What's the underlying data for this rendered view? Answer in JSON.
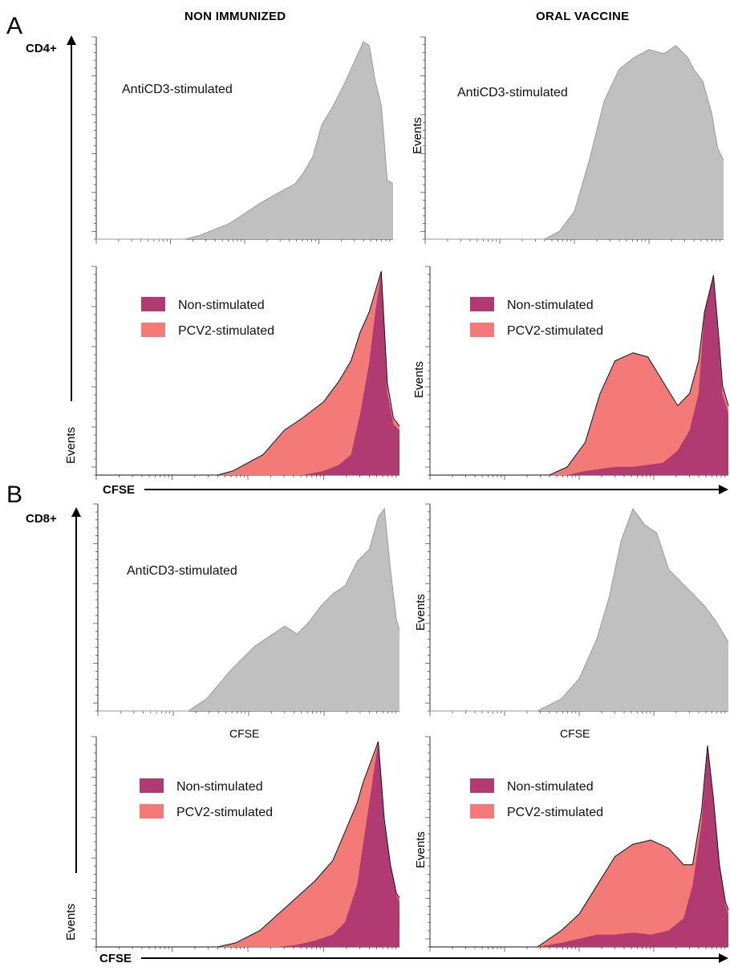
{
  "panels": [
    {
      "letter": "A",
      "cell": "CD4+"
    },
    {
      "letter": "B",
      "cell": "CD8+"
    }
  ],
  "columns": [
    "NON IMMUNIZED",
    "ORAL VACCINE"
  ],
  "axis": {
    "x": "CFSE",
    "y": "Events"
  },
  "legend": {
    "non_stimulated": "Non-stimulated",
    "pcv2_stimulated": "PCV2-stimulated"
  },
  "colors": {
    "anticd3": "#c0c0c0",
    "non_stimulated": "#b23a73",
    "pcv2_stimulated": "#f47a78"
  },
  "chart_data": [
    {
      "type": "area",
      "panel": "A",
      "column": "NON IMMUNIZED",
      "annotation": "AntiCD3-stimulated",
      "x": [
        0.0,
        0.3,
        0.35,
        0.45,
        0.55,
        0.62,
        0.67,
        0.7,
        0.73,
        0.76,
        0.8,
        0.84,
        0.87,
        0.9,
        0.92,
        0.94,
        0.96,
        0.97,
        0.98,
        1.0
      ],
      "series": [
        {
          "name": "AntiCD3-stimulated",
          "values": [
            0,
            0,
            2,
            8,
            18,
            24,
            28,
            34,
            42,
            58,
            68,
            80,
            90,
            100,
            98,
            80,
            68,
            50,
            30,
            28
          ]
        }
      ]
    },
    {
      "type": "area",
      "panel": "A",
      "column": "ORAL VACCINE",
      "annotation": "AntiCD3-stimulated",
      "x": [
        0.0,
        0.4,
        0.45,
        0.5,
        0.55,
        0.6,
        0.65,
        0.7,
        0.75,
        0.8,
        0.84,
        0.88,
        0.9,
        0.93,
        0.96,
        0.98,
        1.0
      ],
      "series": [
        {
          "name": "AntiCD3-stimulated",
          "values": [
            0,
            0,
            4,
            14,
            40,
            70,
            86,
            92,
            96,
            94,
            98,
            92,
            86,
            80,
            64,
            46,
            40
          ]
        }
      ]
    },
    {
      "type": "area",
      "panel": "A",
      "column": "NON IMMUNIZED",
      "annotation": "",
      "x": [
        0.0,
        0.4,
        0.45,
        0.55,
        0.62,
        0.68,
        0.75,
        0.8,
        0.84,
        0.87,
        0.9,
        0.92,
        0.94,
        0.96,
        0.98,
        1.0
      ],
      "series": [
        {
          "name": "Non-stimulated",
          "values": [
            0,
            0,
            0,
            0,
            0,
            0,
            2,
            5,
            10,
            30,
            55,
            80,
            100,
            40,
            25,
            22
          ]
        },
        {
          "name": "PCV2-stimulated",
          "values": [
            0,
            0,
            2,
            10,
            22,
            28,
            36,
            46,
            56,
            70,
            80,
            90,
            100,
            45,
            28,
            24
          ]
        }
      ]
    },
    {
      "type": "area",
      "panel": "A",
      "column": "ORAL VACCINE",
      "annotation": "",
      "x": [
        0.0,
        0.4,
        0.46,
        0.52,
        0.57,
        0.62,
        0.68,
        0.73,
        0.78,
        0.83,
        0.87,
        0.9,
        0.92,
        0.95,
        0.97,
        0.98,
        1.0
      ],
      "series": [
        {
          "name": "Non-stimulated",
          "values": [
            0,
            0,
            0,
            2,
            3,
            4,
            4,
            5,
            6,
            12,
            22,
            40,
            80,
            98,
            60,
            40,
            30
          ]
        },
        {
          "name": "PCV2-stimulated",
          "values": [
            0,
            0,
            4,
            16,
            40,
            56,
            60,
            58,
            46,
            34,
            40,
            56,
            80,
            98,
            64,
            44,
            34
          ]
        }
      ]
    },
    {
      "type": "area",
      "panel": "B",
      "column": "NON IMMUNIZED",
      "annotation": "AntiCD3-stimulated",
      "x": [
        0.0,
        0.3,
        0.36,
        0.44,
        0.52,
        0.58,
        0.62,
        0.66,
        0.7,
        0.74,
        0.78,
        0.82,
        0.86,
        0.9,
        0.93,
        0.95,
        0.97,
        0.99,
        1.0
      ],
      "series": [
        {
          "name": "AntiCD3-stimulated",
          "values": [
            0,
            0,
            6,
            20,
            32,
            38,
            42,
            38,
            44,
            52,
            58,
            62,
            74,
            80,
            96,
            100,
            70,
            45,
            40
          ]
        }
      ]
    },
    {
      "type": "area",
      "panel": "B",
      "column": "ORAL VACCINE",
      "annotation": "",
      "x": [
        0.0,
        0.36,
        0.44,
        0.5,
        0.56,
        0.6,
        0.64,
        0.68,
        0.72,
        0.76,
        0.8,
        0.84,
        0.88,
        0.92,
        0.96,
        1.0
      ],
      "series": [
        {
          "name": "AntiCD3-stimulated",
          "values": [
            0,
            0,
            6,
            16,
            36,
            56,
            84,
            100,
            92,
            88,
            70,
            64,
            58,
            52,
            44,
            34
          ]
        }
      ]
    },
    {
      "type": "area",
      "panel": "B",
      "column": "NON IMMUNIZED",
      "annotation": "",
      "x": [
        0.0,
        0.4,
        0.46,
        0.54,
        0.6,
        0.66,
        0.72,
        0.78,
        0.82,
        0.86,
        0.88,
        0.91,
        0.93,
        0.95,
        0.97,
        0.99,
        1.0
      ],
      "series": [
        {
          "name": "Non-stimulated",
          "values": [
            0,
            0,
            0,
            0,
            0,
            1,
            3,
            6,
            12,
            30,
            50,
            80,
            100,
            60,
            40,
            25,
            22
          ]
        },
        {
          "name": "PCV2-stimulated",
          "values": [
            0,
            0,
            2,
            8,
            16,
            24,
            32,
            42,
            56,
            70,
            80,
            92,
            100,
            62,
            40,
            26,
            24
          ]
        }
      ]
    },
    {
      "type": "area",
      "panel": "B",
      "column": "ORAL VACCINE",
      "annotation": "",
      "x": [
        0.0,
        0.36,
        0.44,
        0.5,
        0.56,
        0.62,
        0.68,
        0.74,
        0.8,
        0.85,
        0.88,
        0.91,
        0.93,
        0.95,
        0.97,
        0.99,
        1.0
      ],
      "series": [
        {
          "name": "Non-stimulated",
          "values": [
            0,
            0,
            2,
            4,
            6,
            6,
            7,
            6,
            8,
            14,
            30,
            60,
            98,
            70,
            40,
            20,
            16
          ]
        },
        {
          "name": "PCV2-stimulated",
          "values": [
            0,
            0,
            8,
            16,
            30,
            44,
            50,
            52,
            48,
            40,
            40,
            66,
            98,
            72,
            40,
            22,
            18
          ]
        }
      ]
    }
  ],
  "sub_axis_label": "CFSE"
}
